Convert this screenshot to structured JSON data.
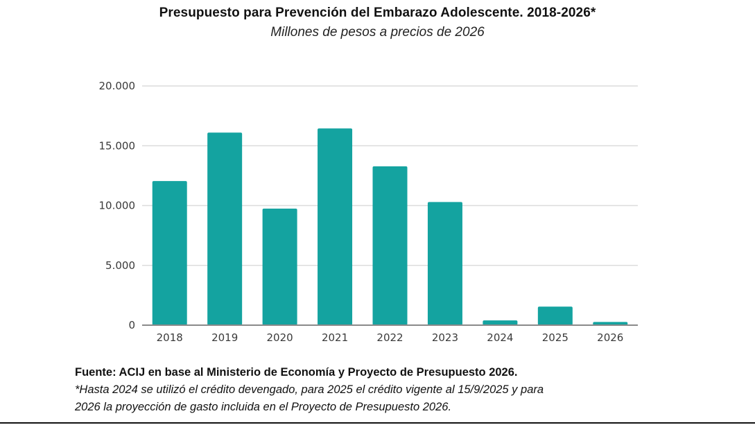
{
  "chart_data": {
    "type": "bar",
    "title": "Presupuesto para Prevención del Embarazo Adolescente. 2018-2026*",
    "subtitle": "Millones de pesos a precios de 2026",
    "xlabel": "",
    "ylabel": "",
    "categories": [
      "2018",
      "2019",
      "2020",
      "2021",
      "2022",
      "2023",
      "2024",
      "2025",
      "2026"
    ],
    "values": [
      12050,
      16100,
      9750,
      16450,
      13280,
      10300,
      400,
      1550,
      270
    ],
    "ylim": [
      0,
      20000
    ],
    "yticks": [
      0,
      5000,
      10000,
      15000,
      20000
    ],
    "ytick_labels": [
      "0",
      "5.000",
      "10.000",
      "15.000",
      "20.000"
    ],
    "grid": true,
    "legend": "none",
    "bar_color": "#14A3A0"
  },
  "footer": {
    "source": "Fuente: ACIJ en base al Ministerio de Economía y Proyecto de Presupuesto 2026.",
    "note_line1": "*Hasta 2024 se utilizó el crédito devengado, para 2025 el crédito vigente al 15/9/2025 y para",
    "note_line2": "2026 la proyección de gasto incluida en el Proyecto de Presupuesto 2026."
  }
}
